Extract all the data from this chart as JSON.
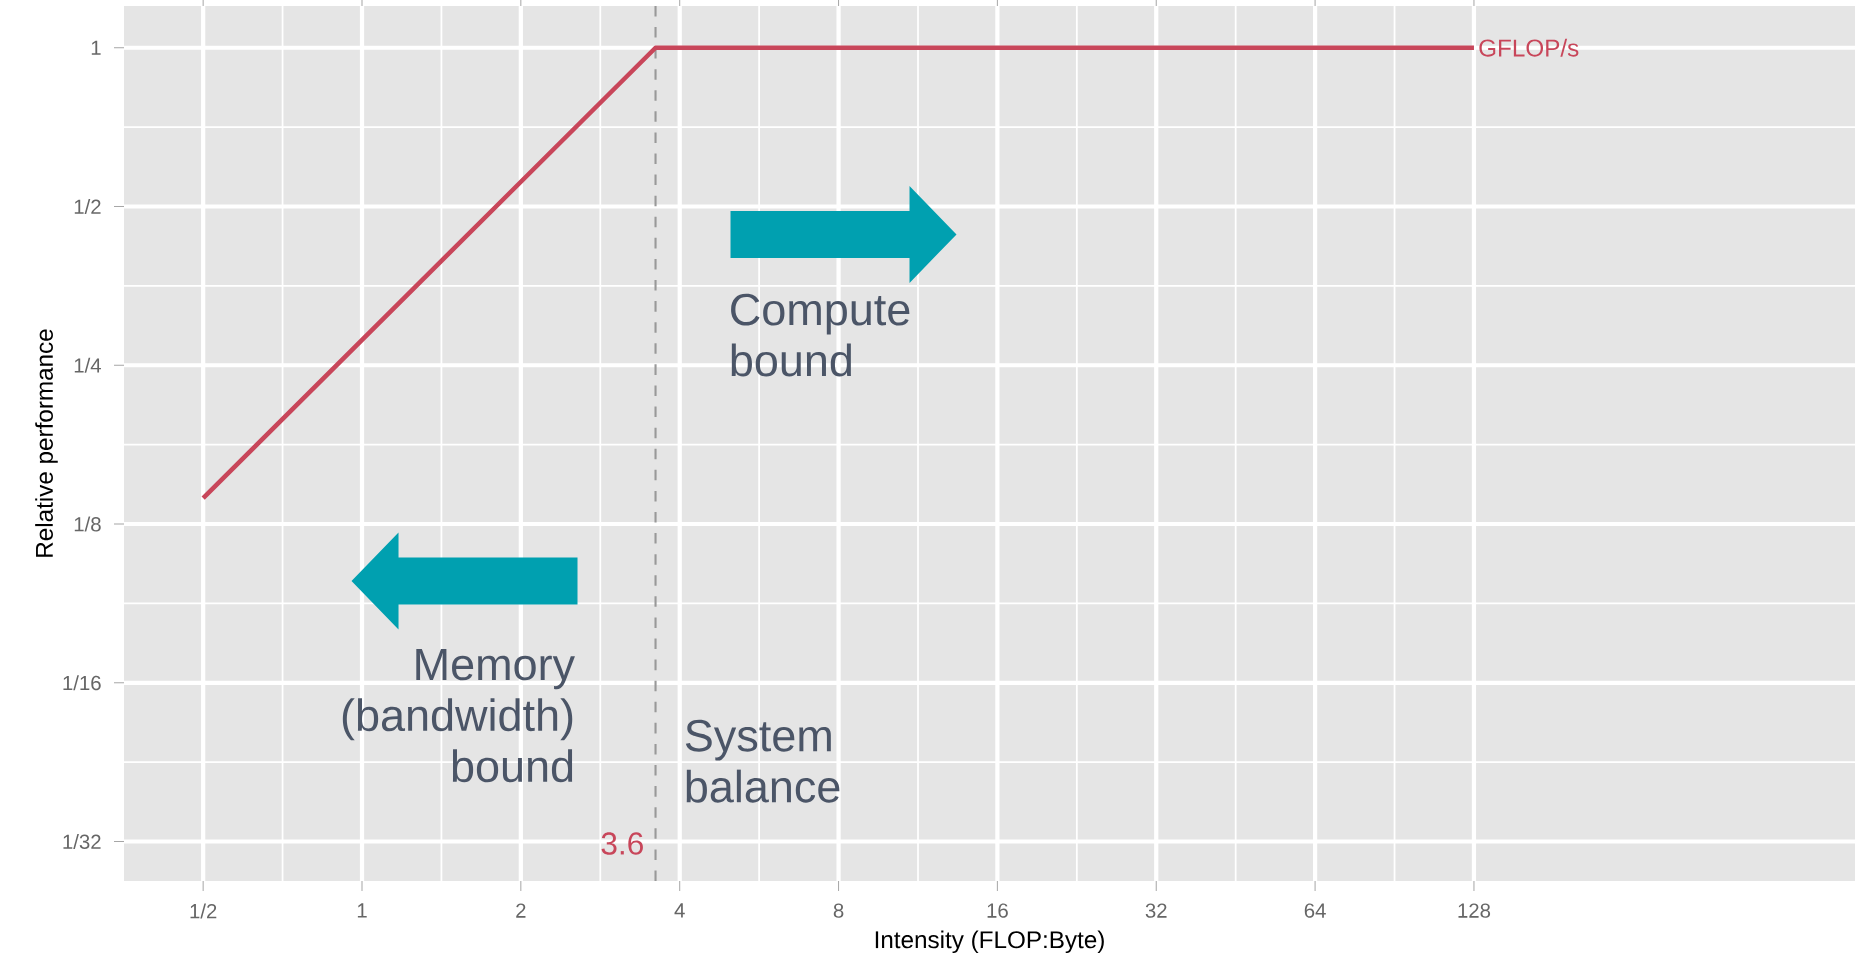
{
  "chart_data": {
    "type": "line",
    "xlabel": "Intensity (FLOP:Byte)",
    "ylabel": "Relative performance",
    "log": "xy",
    "grid": true,
    "xlim": [
      0.354,
      675
    ],
    "ylim": [
      0.0263,
      1.2
    ],
    "xticks": [
      {
        "value": 0.5,
        "label": "1/2"
      },
      1,
      2,
      4,
      8,
      16,
      32,
      64,
      128
    ],
    "yticks": [
      {
        "value": 0.03125,
        "label": "1/32"
      },
      {
        "value": 0.0625,
        "label": "1/16"
      },
      {
        "value": 0.125,
        "label": "1/8"
      },
      {
        "value": 0.25,
        "label": "1/4"
      },
      {
        "value": 0.5,
        "label": "1/2"
      },
      1
    ],
    "series": [
      {
        "name": "GFLOP/s",
        "color": "#c8465a",
        "x": [
          0.5,
          3.6,
          128
        ],
        "values": [
          0.14,
          1,
          1
        ]
      }
    ],
    "ref_lines": [
      {
        "axis": "x",
        "value": 3.6,
        "label": "3.6",
        "color": "#999999",
        "line_style": "dashed"
      }
    ],
    "annotations": [
      "Compute bound",
      "Memory (bandwidth) bound",
      "System balance"
    ]
  }
}
